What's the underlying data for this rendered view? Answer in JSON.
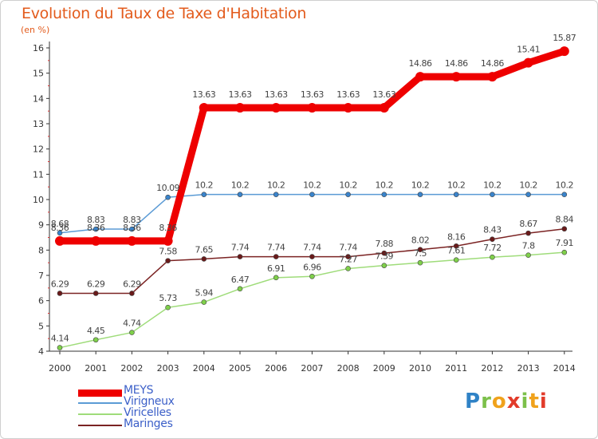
{
  "title": "Evolution du Taux de Taxe d'Habitation",
  "subtitle": "(en %)",
  "logo_text": "Proxiti",
  "chart_data": {
    "type": "line",
    "title": "Evolution du Taux de Taxe d'Habitation",
    "subtitle": "(en %)",
    "xlabel": "",
    "ylabel": "",
    "x": [
      "2000",
      "2001",
      "2002",
      "2003",
      "2004",
      "2005",
      "2006",
      "2007",
      "2008",
      "2009",
      "2010",
      "2011",
      "2012",
      "2013",
      "2014"
    ],
    "ylim": [
      4,
      16
    ],
    "yticks": [
      4,
      5,
      6,
      7,
      8,
      9,
      10,
      11,
      12,
      13,
      14,
      15,
      16
    ],
    "grid": false,
    "legend_position": "bottom-left",
    "series": [
      {
        "name": "MEYS",
        "color": "#ee0000",
        "values": [
          8.36,
          8.36,
          8.36,
          8.36,
          13.63,
          13.63,
          13.63,
          13.63,
          13.63,
          13.63,
          14.86,
          14.86,
          14.86,
          15.41,
          15.87
        ],
        "labels": [
          "8.36",
          "8.36",
          "8.36",
          "8.36",
          "13.63",
          "13.63",
          "13.63",
          "13.63",
          "13.63",
          "13.63",
          "14.86",
          "14.86",
          "14.86",
          "15.41",
          "15.87"
        ]
      },
      {
        "name": "Virigneux",
        "color": "#5b9bd5",
        "values": [
          8.68,
          8.83,
          8.83,
          10.09,
          10.2,
          10.2,
          10.2,
          10.2,
          10.2,
          10.2,
          10.2,
          10.2,
          10.2,
          10.2,
          10.2
        ],
        "labels": [
          "8.68",
          "8.83",
          "8.83",
          "10.09",
          "10.2",
          "10.2",
          "10.2",
          "10.2",
          "10.2",
          "10.2",
          "10.2",
          "10.2",
          "10.2",
          "10.2",
          "10.2"
        ]
      },
      {
        "name": "Viricelles",
        "color": "#9fdc7a",
        "values": [
          4.14,
          4.45,
          4.74,
          5.73,
          5.94,
          6.47,
          6.91,
          6.96,
          7.27,
          7.39,
          7.5,
          7.61,
          7.72,
          7.8,
          7.91
        ],
        "labels": [
          "4.14",
          "4.45",
          "4.74",
          "5.73",
          "5.94",
          "6.47",
          "6.91",
          "6.96",
          "7.27",
          "7.39",
          "7.5",
          "7.61",
          "7.72",
          "7.8",
          "7.91"
        ]
      },
      {
        "name": "Maringes",
        "color": "#7b2323",
        "values": [
          6.29,
          6.29,
          6.29,
          7.58,
          7.65,
          7.74,
          7.74,
          7.74,
          7.74,
          7.88,
          8.02,
          8.16,
          8.43,
          8.67,
          8.84
        ],
        "labels": [
          "6.29",
          "6.29",
          "6.29",
          "7.58",
          "7.65",
          "7.74",
          "7.74",
          "7.74",
          "7.74",
          "7.88",
          "8.02",
          "8.16",
          "8.43",
          "8.67",
          "8.84"
        ]
      }
    ]
  }
}
